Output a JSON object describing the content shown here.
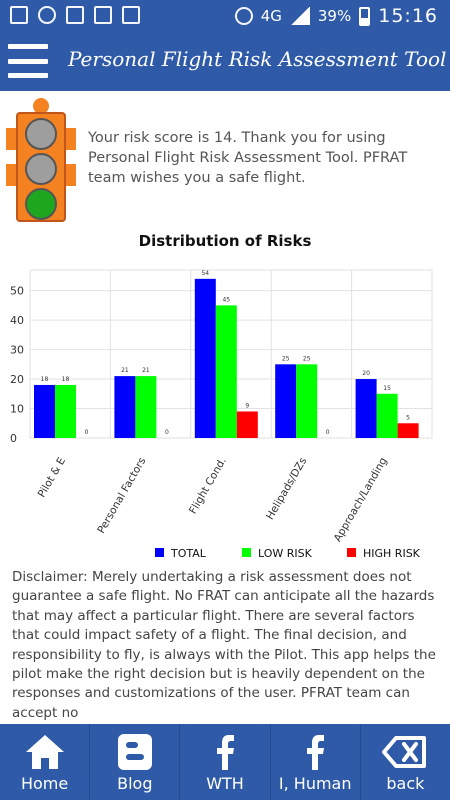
{
  "status_bar": {
    "icons": [
      "gallery-icon",
      "messenger-icon",
      "email-icon",
      "mail-icon",
      "gmail-icon",
      "alarm-icon",
      "signal-icon",
      "battery-icon"
    ],
    "network": "4G",
    "battery": "39%",
    "time": "15:16"
  },
  "header": {
    "title": "Personal Flight Risk Assessment Tool"
  },
  "result": {
    "message": "Your risk score is 14. Thank you for using Personal Flight Risk Assessment Tool. PFRAT team wishes you a safe flight.",
    "lamp_colors": {
      "top": "#9e9e9e",
      "middle": "#9e9e9e",
      "bottom": "#1fa61f"
    }
  },
  "chart_data": {
    "type": "bar",
    "title": "Distribution of Risks",
    "categories": [
      "Pilot & E",
      "Personal Factors",
      "Flight Cond.",
      "Helipads/DZs",
      "Approach/Landing"
    ],
    "series": [
      {
        "name": "TOTAL",
        "color": "#0000ff",
        "values": [
          18,
          21,
          54,
          25,
          20
        ]
      },
      {
        "name": "LOW RISK",
        "color": "#00ff00",
        "values": [
          18,
          21,
          45,
          25,
          15
        ]
      },
      {
        "name": "HIGH RISK",
        "color": "#ff0000",
        "values": [
          0,
          0,
          9,
          0,
          5
        ]
      }
    ],
    "yticks": [
      0,
      10,
      20,
      30,
      40,
      50
    ],
    "ylim": [
      0,
      57
    ],
    "grid": true,
    "legend": "bottom-right"
  },
  "disclaimer": "Disclaimer: Merely undertaking a risk assessment does not guarantee a safe flight. No FRAT can anticipate all the hazards that may affect a particular flight. There are several factors that could impact safety of a flight. The final decision, and responsibility to fly, is always with the Pilot. This app helps the pilot make the right decision but is heavily dependent on the responses and customizations of the user. PFRAT team can accept no",
  "nav": [
    {
      "label": "Home",
      "icon": "home-icon"
    },
    {
      "label": "Blog",
      "icon": "blogger-icon"
    },
    {
      "label": "WTH",
      "icon": "facebook-icon"
    },
    {
      "label": "I, Human",
      "icon": "facebook-icon"
    },
    {
      "label": "back",
      "icon": "backspace-icon"
    }
  ],
  "colors": {
    "primary": "#2f5aa8",
    "light_orange": "#f58220"
  }
}
